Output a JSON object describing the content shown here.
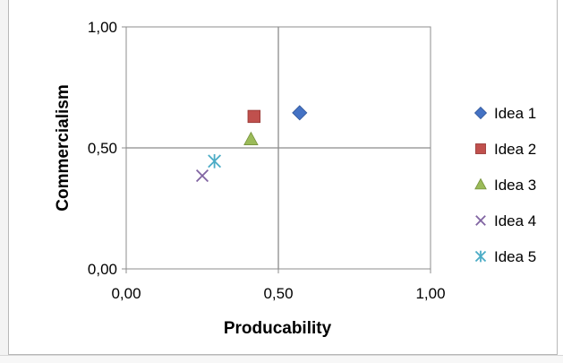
{
  "chart_data": {
    "type": "scatter",
    "title": "",
    "xlabel": "Producability",
    "ylabel": "Commercialism",
    "xlim": [
      0,
      1
    ],
    "ylim": [
      0,
      1
    ],
    "x_ticks": [
      "0,00",
      "0,50",
      "1,00"
    ],
    "y_ticks": [
      "0,00",
      "0,50",
      "1,00"
    ],
    "grid": "crosshair lines at 0,50 on both axes",
    "legend_position": "right",
    "series": [
      {
        "name": "Idea 1",
        "marker": "diamond",
        "color": "#4472C4",
        "x": [
          0.57
        ],
        "y": [
          0.645
        ]
      },
      {
        "name": "Idea 2",
        "marker": "square",
        "color": "#C0504D",
        "x": [
          0.42
        ],
        "y": [
          0.63
        ]
      },
      {
        "name": "Idea 3",
        "marker": "triangle",
        "color": "#9BBB59",
        "x": [
          0.41
        ],
        "y": [
          0.535
        ]
      },
      {
        "name": "Idea 4",
        "marker": "x",
        "color": "#8064A2",
        "x": [
          0.25
        ],
        "y": [
          0.385
        ]
      },
      {
        "name": "Idea 5",
        "marker": "star",
        "color": "#4BACC6",
        "x": [
          0.29
        ],
        "y": [
          0.445
        ]
      }
    ]
  }
}
